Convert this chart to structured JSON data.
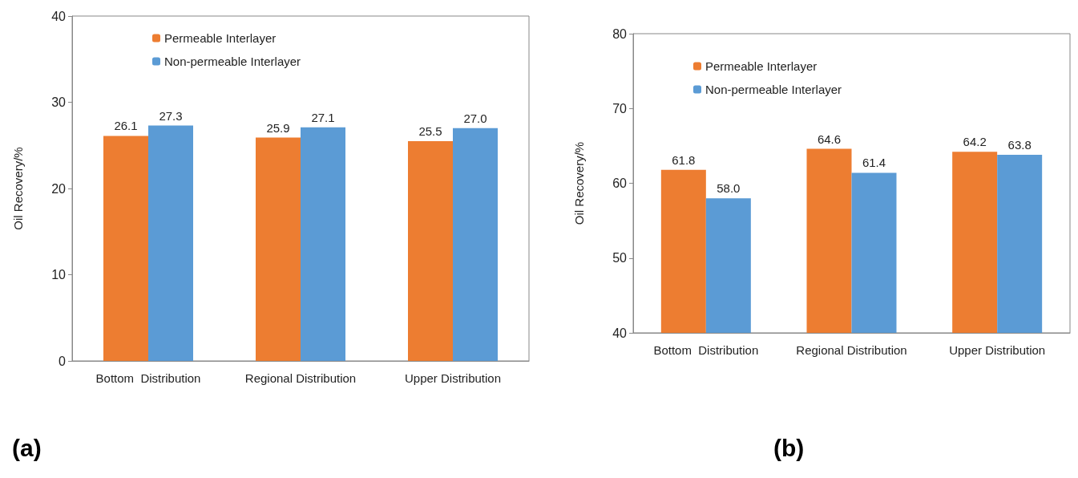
{
  "chart_data": [
    {
      "type": "bar",
      "title": "(a)",
      "ylabel": "Oil Recovery/%",
      "categories": [
        "Bottom  Distribution",
        "Regional Distribution",
        "Upper Distribution"
      ],
      "series": [
        {
          "name": "Permeable Interlayer",
          "color": "#ed7d31",
          "values": [
            26.1,
            25.9,
            25.5
          ],
          "value_labels": [
            "26.1",
            "25.9",
            "25.5"
          ]
        },
        {
          "name": "Non-permeable Interlayer",
          "color": "#5b9bd5",
          "values": [
            27.3,
            27.1,
            27.0
          ],
          "value_labels": [
            "27.3",
            "27.1",
            "27.0"
          ]
        }
      ],
      "ylim": [
        0,
        40
      ],
      "yticks": [
        0,
        10,
        20,
        30,
        40
      ],
      "grid": false,
      "legend": "top"
    },
    {
      "type": "bar",
      "title": "(b)",
      "ylabel": "Oil Recovery/%",
      "categories": [
        "Bottom  Distribution",
        "Regional Distribution",
        "Upper Distribution"
      ],
      "series": [
        {
          "name": "Permeable Interlayer",
          "color": "#ed7d31",
          "values": [
            61.8,
            64.6,
            64.2
          ],
          "value_labels": [
            "61.8",
            "64.6",
            "64.2"
          ]
        },
        {
          "name": "Non-permeable Interlayer",
          "color": "#5b9bd5",
          "values": [
            58.0,
            61.4,
            63.8
          ],
          "value_labels": [
            "58.0",
            "61.4",
            "63.8"
          ]
        }
      ],
      "ylim": [
        40,
        80
      ],
      "yticks": [
        40,
        50,
        60,
        70,
        80
      ],
      "grid": false,
      "legend": "top"
    }
  ]
}
